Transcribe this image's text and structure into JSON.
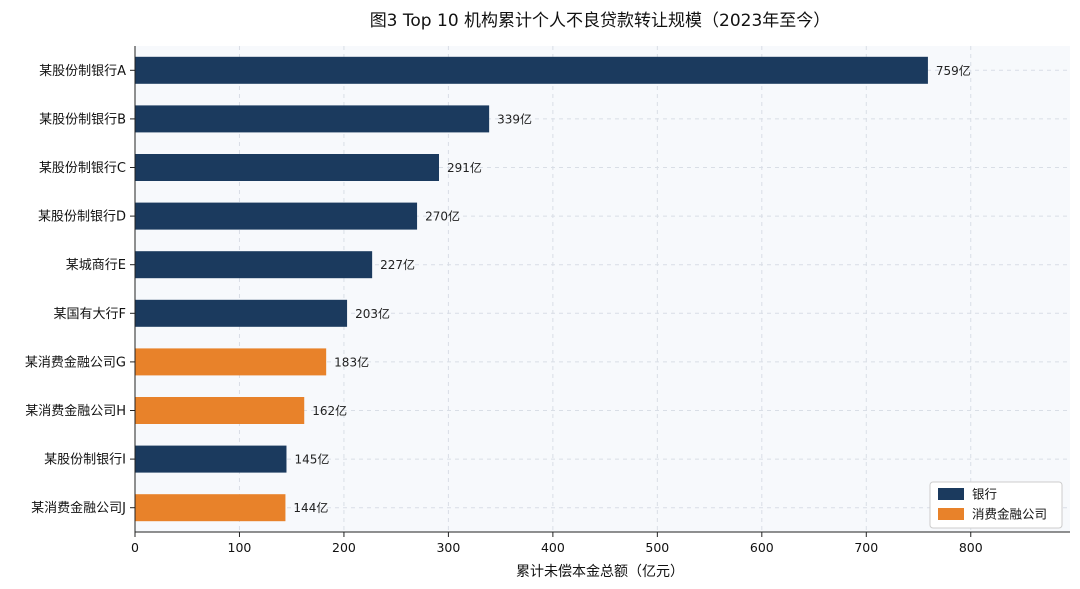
{
  "chart_data": {
    "type": "bar",
    "orientation": "horizontal",
    "title": "图3  Top 10 机构累计个人不良贷款转让规模（2023年至今）",
    "xlabel": "累计未偿本金总额（亿元）",
    "ylabel": "",
    "xlim": [
      0,
      895
    ],
    "x_ticks": [
      0,
      100,
      200,
      300,
      400,
      500,
      600,
      700,
      800
    ],
    "grid": true,
    "legend_position": "bottom-right",
    "categories": [
      "某股份制银行A",
      "某股份制银行B",
      "某股份制银行C",
      "某股份制银行D",
      "某城商行E",
      "某国有大行F",
      "某消费金融公司G",
      "某消费金融公司H",
      "某股份制银行I",
      "某消费金融公司J"
    ],
    "values": [
      759,
      339,
      291,
      270,
      227,
      203,
      183,
      162,
      145,
      144
    ],
    "value_labels": [
      "759亿",
      "339亿",
      "291亿",
      "270亿",
      "227亿",
      "203亿",
      "183亿",
      "162亿",
      "145亿",
      "144亿"
    ],
    "groups": [
      "银行",
      "银行",
      "银行",
      "银行",
      "银行",
      "银行",
      "消费金融公司",
      "消费金融公司",
      "银行",
      "消费金融公司"
    ],
    "legend": [
      {
        "name": "银行",
        "color": "#1b3a5e"
      },
      {
        "name": "消费金融公司",
        "color": "#e8822a"
      }
    ]
  },
  "colors": {
    "plot_background": "#f7f9fc",
    "grid": "#d9dee6",
    "axis": "#222222"
  }
}
